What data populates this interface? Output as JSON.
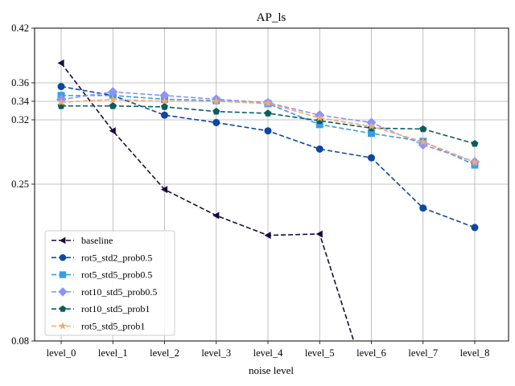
{
  "chart_data": {
    "type": "line",
    "title": "AP_ls",
    "xlabel": "noise level",
    "ylabel": "",
    "categories": [
      "level_0",
      "level_1",
      "level_2",
      "level_3",
      "level_4",
      "level_5",
      "level_6",
      "level_7",
      "level_8"
    ],
    "y_ticks": [
      0.08,
      0.25,
      0.32,
      0.34,
      0.36,
      0.42
    ],
    "y_tick_labels": [
      "0.08",
      "0.25",
      "0.32",
      "0.34",
      "0.36",
      "0.42"
    ],
    "ylim": [
      0.08,
      0.42
    ],
    "grid": true,
    "legend_position": "lower-left",
    "series": [
      {
        "name": "baseline",
        "color": "#1a0a3c",
        "marker": "triangle-left",
        "values": [
          0.3817,
          0.308,
          0.2442,
          0.216,
          0.1945,
          0.196,
          0.02,
          null,
          null
        ]
      },
      {
        "name": "rot5_std2_prob0.5",
        "color": "#0d47a1",
        "marker": "circle",
        "values": [
          0.356,
          0.3463,
          0.3251,
          0.317,
          0.308,
          0.2882,
          0.2787,
          0.2241,
          0.203
        ]
      },
      {
        "name": "rot5_std5_prob0.5",
        "color": "#3a9ee6",
        "marker": "square",
        "values": [
          0.3463,
          0.3463,
          0.3423,
          0.3407,
          0.3375,
          0.3149,
          0.3053,
          0.2965,
          0.2709
        ]
      },
      {
        "name": "rot10_std5_prob0.5",
        "color": "#8a94ff",
        "marker": "diamond",
        "values": [
          0.342,
          0.3502,
          0.3463,
          0.3423,
          0.3385,
          0.3251,
          0.317,
          0.2928,
          0.2743
        ]
      },
      {
        "name": "rot10_std5_prob1",
        "color": "#0b5c5c",
        "marker": "pentagon",
        "values": [
          0.335,
          0.335,
          0.334,
          0.329,
          0.327,
          0.319,
          0.311,
          0.31,
          0.294
        ]
      },
      {
        "name": "rot5_std5_prob1",
        "color": "#f5a96b",
        "marker": "star",
        "values": [
          0.339,
          0.342,
          0.34,
          0.34,
          0.338,
          0.322,
          0.313,
          0.296,
          0.274
        ]
      }
    ]
  }
}
